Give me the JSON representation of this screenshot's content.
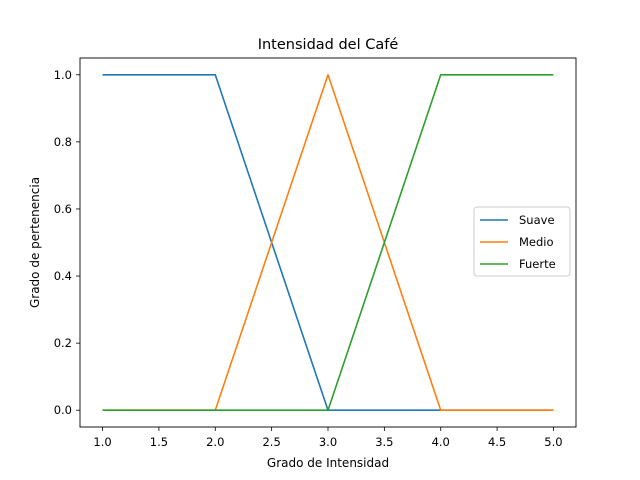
{
  "chart_data": {
    "type": "line",
    "title": "Intensidad del Café",
    "xlabel": "Grado de Intensidad",
    "ylabel": "Grado de pertenencia",
    "xlim": [
      0.8,
      5.2
    ],
    "ylim": [
      -0.05,
      1.05
    ],
    "xticks": [
      1.0,
      1.5,
      2.0,
      2.5,
      3.0,
      3.5,
      4.0,
      4.5,
      5.0
    ],
    "xtick_labels": [
      "1.0",
      "1.5",
      "2.0",
      "2.5",
      "3.0",
      "3.5",
      "4.0",
      "4.5",
      "5.0"
    ],
    "yticks": [
      0.0,
      0.2,
      0.4,
      0.6,
      0.8,
      1.0
    ],
    "ytick_labels": [
      "0.0",
      "0.2",
      "0.4",
      "0.6",
      "0.8",
      "1.0"
    ],
    "grid": false,
    "legend_position": "center-right",
    "series": [
      {
        "name": "Suave",
        "color": "#1f77b4",
        "x": [
          1,
          2,
          3,
          4,
          5
        ],
        "y": [
          1,
          1,
          0,
          0,
          0
        ]
      },
      {
        "name": "Medio",
        "color": "#ff7f0e",
        "x": [
          1,
          2,
          3,
          4,
          5
        ],
        "y": [
          0,
          0,
          1,
          0,
          0
        ]
      },
      {
        "name": "Fuerte",
        "color": "#2ca02c",
        "x": [
          1,
          2,
          3,
          4,
          5
        ],
        "y": [
          0,
          0,
          0,
          1,
          1
        ]
      }
    ]
  }
}
